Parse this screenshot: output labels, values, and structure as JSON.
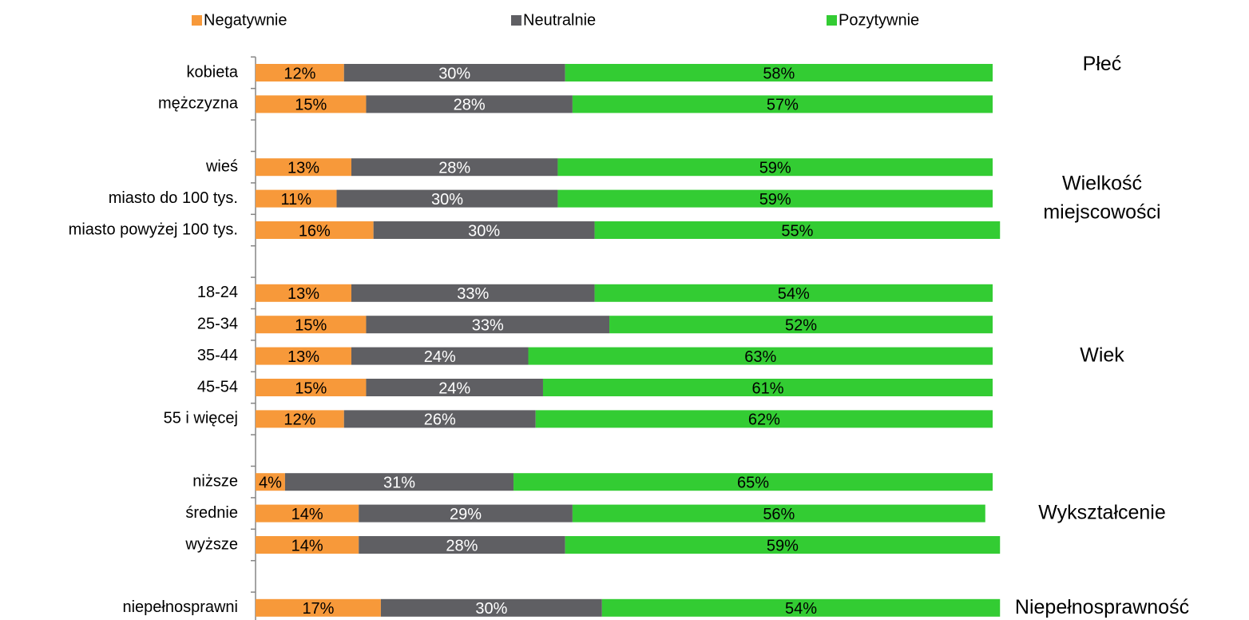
{
  "chart_data": {
    "type": "stacked_bar_horizontal",
    "categories": [
      "kobieta",
      "mężczyzna",
      null,
      "wieś",
      "miasto do 100 tys.",
      "miasto powyżej 100 tys.",
      null,
      "18-24",
      "25-34",
      "35-44",
      "45-54",
      "55 i więcej",
      null,
      "niższe",
      "średnie",
      "wyższe",
      null,
      "niepełnosprawni"
    ],
    "groups": [
      [
        "Płeć"
      ],
      [
        "Wielkość",
        "miejscowości"
      ],
      [
        "Wiek"
      ],
      [
        "Wykształcenie"
      ],
      [
        "Niepełnosprawność"
      ]
    ],
    "xlim": [
      0,
      100
    ],
    "legend": "top",
    "series": [
      {
        "name": "Negatywnie",
        "color": "#f7993a",
        "label_color": "#000000",
        "values": [
          12,
          15,
          null,
          13,
          11,
          16,
          null,
          13,
          15,
          13,
          15,
          12,
          null,
          4,
          14,
          14,
          null,
          17
        ],
        "value_labels": [
          "12%",
          "15%",
          null,
          "13%",
          "11%",
          "16%",
          null,
          "13%",
          "15%",
          "13%",
          "15%",
          "12%",
          null,
          "4%",
          "14%",
          "14%",
          null,
          "17%"
        ]
      },
      {
        "name": "Neutralnie",
        "color": "#5f5f63",
        "label_color": "#ffffff",
        "values": [
          30,
          28,
          null,
          28,
          30,
          30,
          null,
          33,
          33,
          24,
          24,
          26,
          null,
          31,
          29,
          28,
          null,
          30
        ],
        "value_labels": [
          "30%",
          "28%",
          null,
          "28%",
          "30%",
          "30%",
          null,
          "33%",
          "33%",
          "24%",
          "24%",
          "26%",
          null,
          "31%",
          "29%",
          "28%",
          null,
          "30%"
        ]
      },
      {
        "name": "Pozytywnie",
        "color": "#33cc33",
        "label_color": "#000000",
        "values": [
          58,
          57,
          null,
          59,
          59,
          55,
          null,
          54,
          52,
          63,
          61,
          62,
          null,
          65,
          56,
          59,
          null,
          54
        ],
        "value_labels": [
          "58%",
          "57%",
          null,
          "59%",
          "59%",
          "55%",
          null,
          "54%",
          "52%",
          "63%",
          "61%",
          "62%",
          null,
          "65%",
          "56%",
          "59%",
          null,
          "54%"
        ]
      }
    ]
  }
}
